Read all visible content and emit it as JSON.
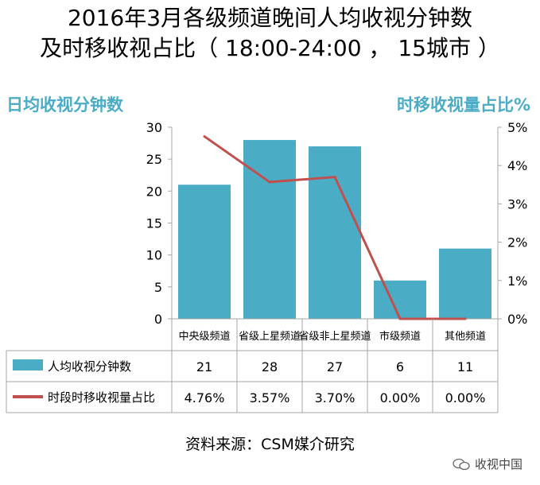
{
  "title_line1": "2016年3月各级频道晚间人均收视分钟数",
  "title_line2": "及时移收视占比（ 18:00-24:00 ， 15城市 ）",
  "source": "资料来源：CSM媒介研究",
  "watermark": "收视中国",
  "chart_data": {
    "type": "bar",
    "left_axis_title": "日均收视分钟数",
    "right_axis_title": "时移收视量占比%",
    "categories": [
      "中央级频道",
      "省级上星频道",
      "省级非上星频道",
      "市级频道",
      "其他频道"
    ],
    "ylim": [
      0,
      30
    ],
    "yticks": [
      0,
      5,
      10,
      15,
      20,
      25,
      30
    ],
    "y2lim": [
      0,
      5
    ],
    "y2ticks": [
      "0%",
      "1%",
      "2%",
      "3%",
      "4%",
      "5%"
    ],
    "grid": false,
    "legend": "table-below",
    "series": [
      {
        "name": "人均收视分钟数",
        "type": "bar",
        "color": "#4bacc6",
        "values": [
          21,
          28,
          27,
          6,
          11
        ],
        "labels": [
          "21",
          "28",
          "27",
          "6",
          "11"
        ]
      },
      {
        "name": "时段时移收视量占比",
        "type": "line",
        "axis": "right",
        "color": "#c0504d",
        "values": [
          4.76,
          3.57,
          3.7,
          0.0,
          0.0
        ],
        "labels": [
          "4.76%",
          "3.57%",
          "3.70%",
          "0.00%",
          "0.00%"
        ]
      }
    ],
    "table_text_color": "#000000",
    "axis_title_color": "#4bacc6"
  }
}
